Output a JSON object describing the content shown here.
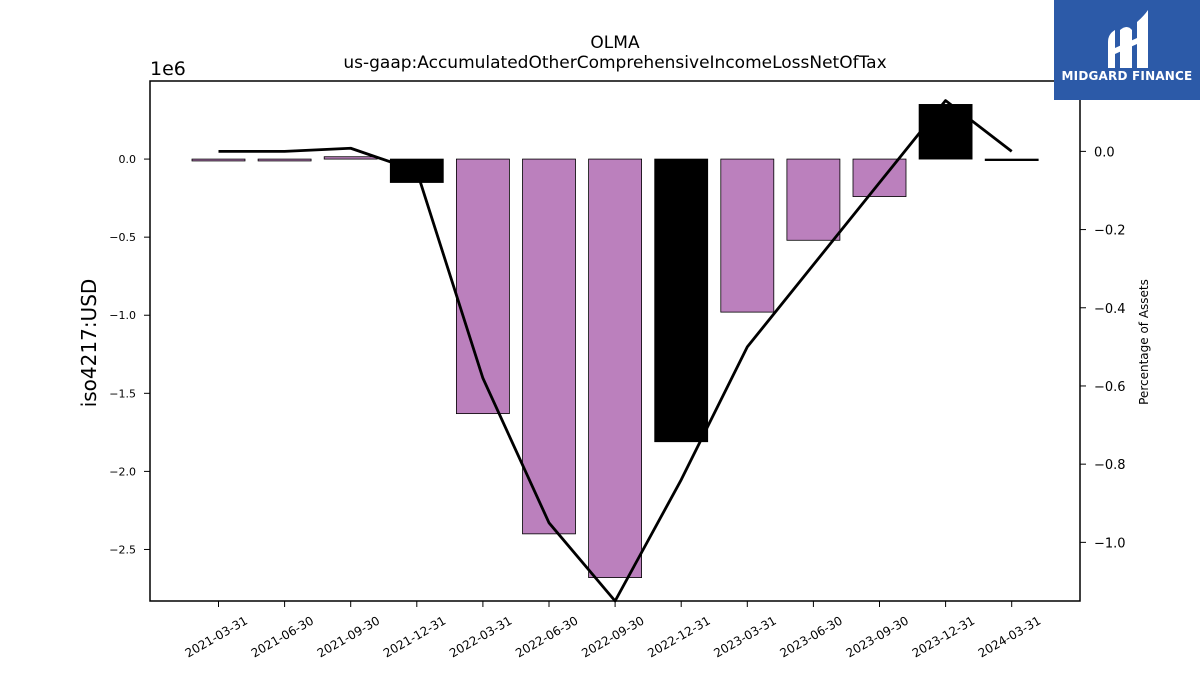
{
  "chart_data": {
    "type": "bar",
    "title": "OLMA",
    "subtitle": "us-gaap:AccumulatedOtherComprehensiveIncomeLossNetOfTax",
    "ylabel": "iso4217:USD",
    "y2label": "Percentage of Assets",
    "y_multiplier": "1e6",
    "ylim": [
      -2.83,
      0.5
    ],
    "y2lim": [
      -1.15,
      0.18
    ],
    "yticks": [
      0.0,
      -0.5,
      -1.0,
      -1.5,
      -2.0,
      -2.5
    ],
    "yticks_labels": [
      "0.0",
      "−0.5",
      "−1.0",
      "−1.5",
      "−2.0",
      "−2.5"
    ],
    "y2ticks": [
      0.0,
      -0.2,
      -0.4,
      -0.6,
      -0.8,
      -1.0
    ],
    "y2ticks_labels": [
      "0.0",
      "−0.2",
      "−0.4",
      "−0.6",
      "−0.8",
      "−1.0"
    ],
    "categories": [
      "2021-03-31",
      "2021-06-30",
      "2021-09-30",
      "2021-12-31",
      "2022-03-31",
      "2022-06-30",
      "2022-09-30",
      "2022-12-31",
      "2023-03-31",
      "2023-06-30",
      "2023-09-30",
      "2023-12-31",
      "2024-03-31"
    ],
    "series": [
      {
        "type": "bar",
        "axis": "left",
        "values": [
          -0.012,
          -0.012,
          0.015,
          -0.15,
          -1.63,
          -2.4,
          -2.68,
          -1.81,
          -0.98,
          -0.52,
          -0.24,
          0.35,
          -0.005
        ],
        "colors": [
          "#bb80bd",
          "#bb80bd",
          "#bb80bd",
          "#000000",
          "#bb80bd",
          "#bb80bd",
          "#bb80bd",
          "#000000",
          "#bb80bd",
          "#bb80bd",
          "#bb80bd",
          "#000000",
          "#000000"
        ]
      },
      {
        "type": "line",
        "axis": "right",
        "values": [
          0.0,
          0.0,
          0.008,
          -0.05,
          -0.58,
          -0.95,
          -1.15,
          -0.84,
          -0.5,
          -0.29,
          -0.08,
          0.13,
          0.0
        ],
        "color": "#000000"
      }
    ],
    "grid": false,
    "legend": "none"
  },
  "logo": {
    "text": "MIDGARD FINANCE",
    "bg": "#2c5aa8"
  }
}
